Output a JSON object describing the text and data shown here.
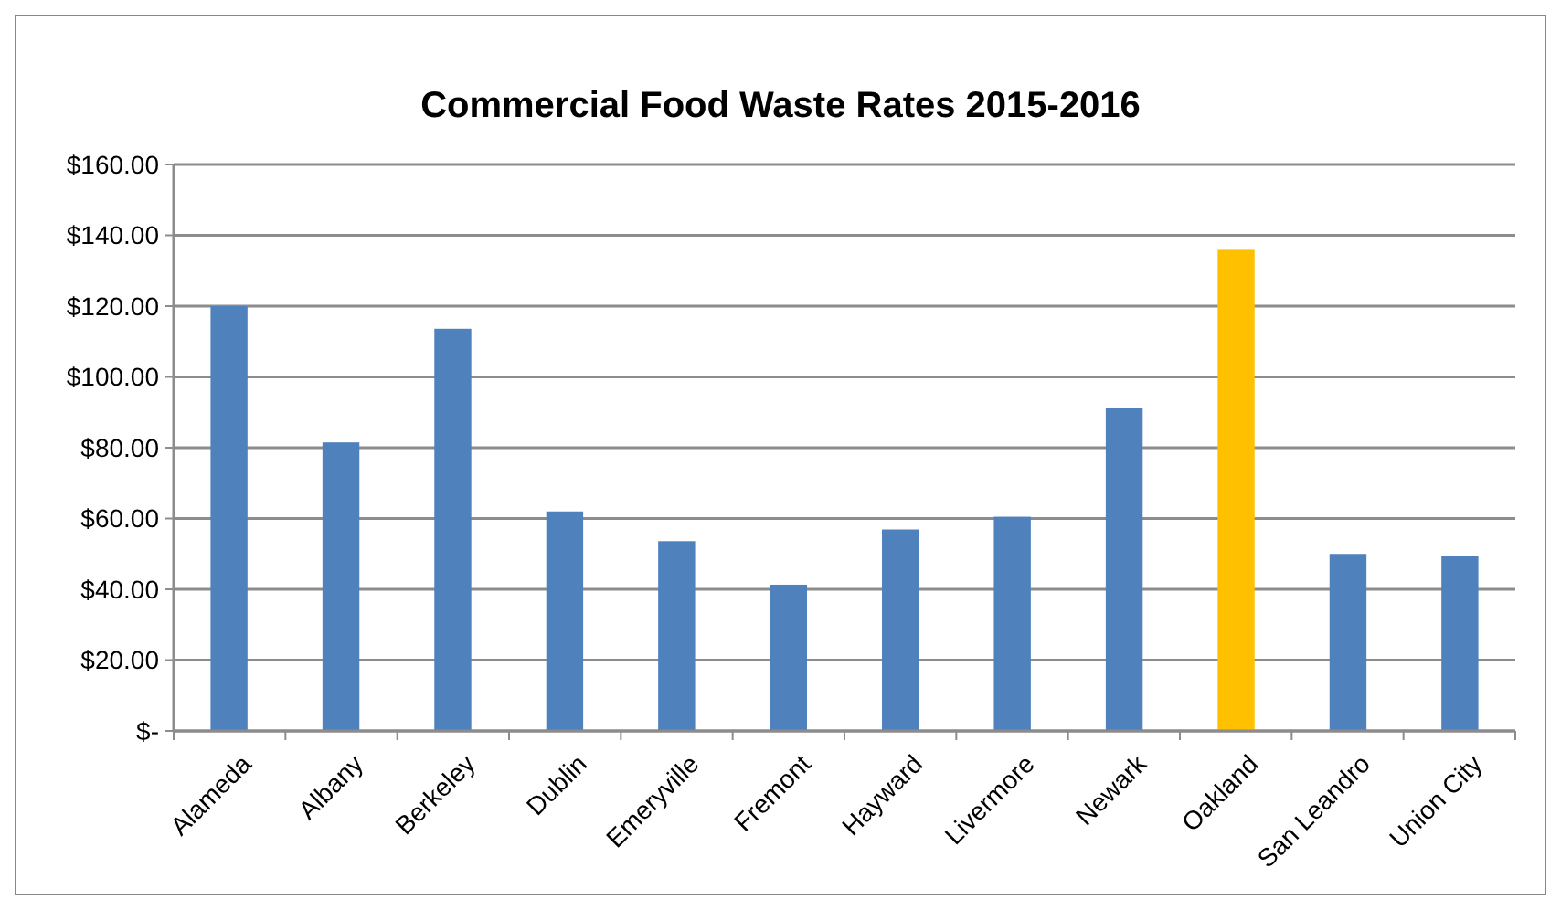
{
  "chart_data": {
    "type": "bar",
    "title": "Commercial Food Waste Rates 2015-2016",
    "categories": [
      "Alameda",
      "Albany",
      "Berkeley",
      "Dublin",
      "Emeryville",
      "Fremont",
      "Hayward",
      "Livermore",
      "Newark",
      "Oakland",
      "San Leandro",
      "Union City"
    ],
    "values": [
      120,
      81.5,
      113.6,
      62,
      53.6,
      41.3,
      56.9,
      60.5,
      91.1,
      135.9,
      50,
      49.5
    ],
    "colors": [
      "#4f81bd",
      "#4f81bd",
      "#4f81bd",
      "#4f81bd",
      "#4f81bd",
      "#4f81bd",
      "#4f81bd",
      "#4f81bd",
      "#4f81bd",
      "#ffc000",
      "#4f81bd",
      "#4f81bd"
    ],
    "ylim": [
      0,
      160
    ],
    "yticks": [
      {
        "value": 0,
        "label": "$-"
      },
      {
        "value": 20,
        "label": "$20.00"
      },
      {
        "value": 40,
        "label": "$40.00"
      },
      {
        "value": 60,
        "label": "$60.00"
      },
      {
        "value": 80,
        "label": "$80.00"
      },
      {
        "value": 100,
        "label": "$100.00"
      },
      {
        "value": 120,
        "label": "$120.00"
      },
      {
        "value": 140,
        "label": "$140.00"
      },
      {
        "value": 160,
        "label": "$160.00"
      }
    ],
    "grid": "y"
  }
}
